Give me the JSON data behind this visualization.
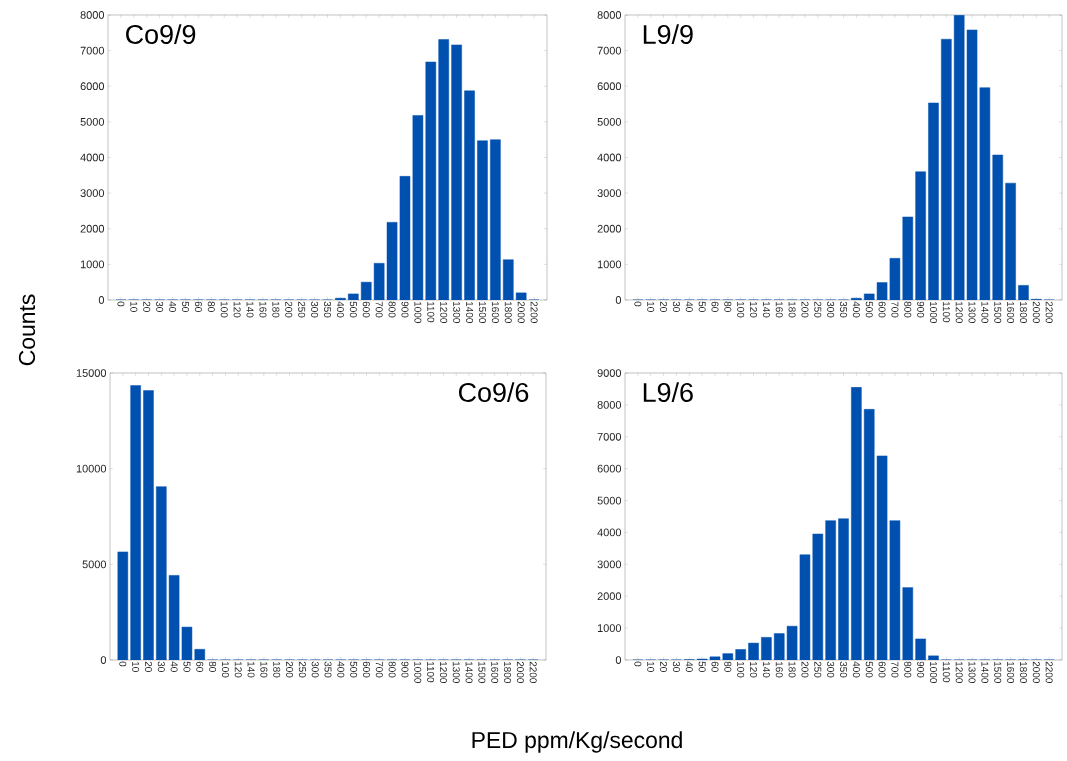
{
  "chart_data": [
    {
      "type": "bar",
      "title": "Co9/9",
      "ylabel": "Counts",
      "categories": [
        "0",
        "10",
        "20",
        "30",
        "40",
        "50",
        "60",
        "80",
        "100",
        "120",
        "140",
        "160",
        "180",
        "200",
        "250",
        "300",
        "350",
        "400",
        "500",
        "600",
        "700",
        "800",
        "900",
        "1000",
        "1100",
        "1200",
        "1300",
        "1400",
        "1500",
        "1600",
        "1800",
        "2000",
        "2200"
      ],
      "values": [
        0,
        0,
        0,
        0,
        0,
        0,
        0,
        0,
        0,
        0,
        0,
        0,
        0,
        0,
        0,
        0,
        0,
        50,
        170,
        500,
        1030,
        2180,
        3470,
        5180,
        6680,
        7310,
        7160,
        5870,
        4470,
        4500,
        1130,
        200,
        0
      ],
      "color": "#0050b0",
      "ylim": [
        0,
        8000
      ],
      "yticks": [
        0,
        1000,
        2000,
        3000,
        4000,
        5000,
        6000,
        7000,
        8000
      ]
    },
    {
      "type": "bar",
      "title": "L9/9",
      "categories": [
        "0",
        "10",
        "20",
        "30",
        "40",
        "50",
        "60",
        "80",
        "100",
        "120",
        "140",
        "160",
        "180",
        "200",
        "250",
        "300",
        "350",
        "400",
        "500",
        "600",
        "700",
        "800",
        "900",
        "1000",
        "1100",
        "1200",
        "1300",
        "1400",
        "1500",
        "1600",
        "1800",
        "2000",
        "2200"
      ],
      "values": [
        0,
        0,
        0,
        0,
        0,
        0,
        0,
        0,
        0,
        0,
        0,
        0,
        0,
        0,
        0,
        0,
        0,
        50,
        170,
        490,
        1170,
        2330,
        3600,
        5530,
        7320,
        7990,
        7580,
        5960,
        4070,
        3280,
        410,
        20,
        0
      ],
      "color": "#0050b0",
      "ylim": [
        0,
        8000
      ],
      "yticks": [
        0,
        1000,
        2000,
        3000,
        4000,
        5000,
        6000,
        7000,
        8000
      ]
    },
    {
      "type": "bar",
      "title": "Co9/6",
      "xlabel": "PED ppm/Kg/second",
      "categories": [
        "0",
        "10",
        "20",
        "30",
        "40",
        "50",
        "60",
        "80",
        "100",
        "120",
        "140",
        "160",
        "180",
        "200",
        "250",
        "300",
        "350",
        "400",
        "500",
        "600",
        "700",
        "800",
        "900",
        "1000",
        "1100",
        "1200",
        "1300",
        "1400",
        "1500",
        "1600",
        "1800",
        "2000",
        "2200"
      ],
      "values": [
        5650,
        14350,
        14080,
        9060,
        4420,
        1720,
        560,
        0,
        0,
        0,
        0,
        0,
        0,
        0,
        0,
        0,
        0,
        0,
        0,
        0,
        0,
        0,
        0,
        0,
        0,
        0,
        0,
        0,
        0,
        0,
        0,
        0,
        0
      ],
      "color": "#0050b0",
      "ylim": [
        0,
        15000
      ],
      "yticks": [
        0,
        5000,
        10000,
        15000
      ]
    },
    {
      "type": "bar",
      "title": "L9/6",
      "categories": [
        "0",
        "10",
        "20",
        "30",
        "40",
        "50",
        "60",
        "80",
        "100",
        "120",
        "140",
        "160",
        "180",
        "200",
        "250",
        "300",
        "350",
        "400",
        "500",
        "600",
        "700",
        "800",
        "900",
        "1000",
        "1100",
        "1200",
        "1300",
        "1400",
        "1500",
        "1600",
        "1800",
        "2000",
        "2200"
      ],
      "values": [
        0,
        0,
        0,
        0,
        10,
        30,
        100,
        200,
        330,
        530,
        710,
        830,
        1060,
        3300,
        3950,
        4370,
        4430,
        8550,
        7860,
        6400,
        4370,
        2270,
        660,
        130,
        0,
        0,
        0,
        0,
        0,
        0,
        0,
        0,
        0
      ],
      "color": "#0050b0",
      "ylim": [
        0,
        9000
      ],
      "yticks": [
        0,
        1000,
        2000,
        3000,
        4000,
        5000,
        6000,
        7000,
        8000,
        9000
      ]
    }
  ]
}
